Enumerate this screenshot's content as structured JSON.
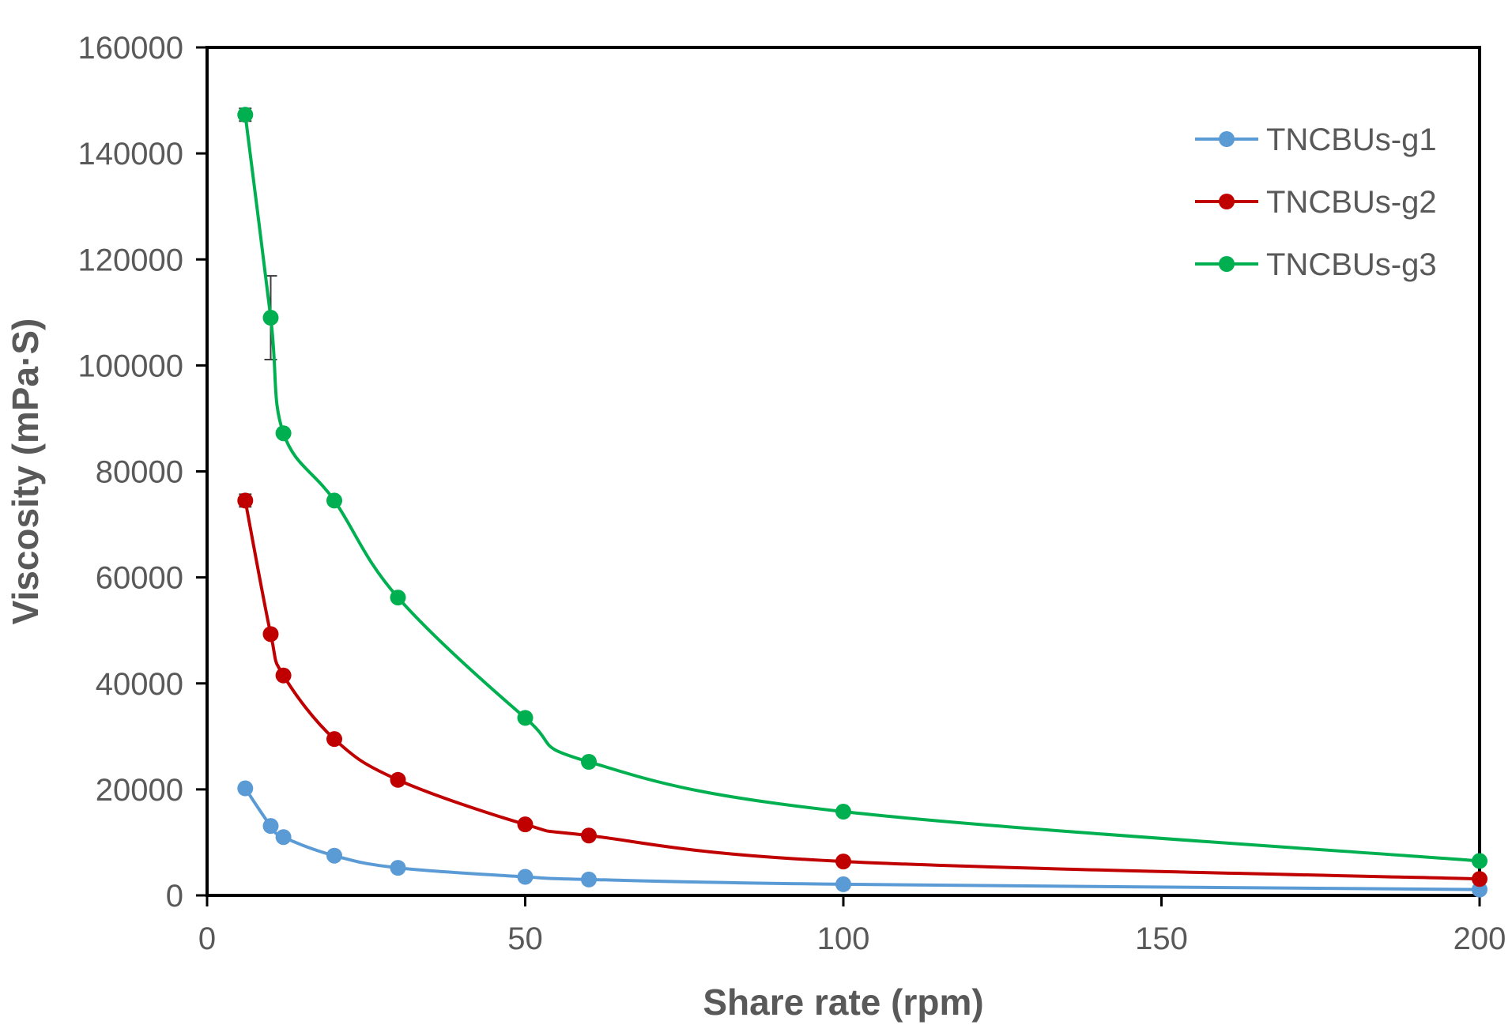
{
  "chart_data": {
    "type": "line",
    "title": "",
    "xlabel": "Share rate (rpm)",
    "ylabel": "Viscosity (mPa·S)",
    "xlim": [
      0,
      200
    ],
    "ylim": [
      0,
      160000
    ],
    "xticks": [
      0,
      50,
      100,
      150,
      200
    ],
    "yticks": [
      0,
      20000,
      40000,
      60000,
      80000,
      100000,
      120000,
      140000,
      160000
    ],
    "grid": false,
    "legend_position": "top-right",
    "x": [
      6,
      10,
      12,
      20,
      30,
      50,
      60,
      100,
      200
    ],
    "series": [
      {
        "name": "TNCBUs-g1",
        "color": "#5B9BD5",
        "values": [
          20200,
          13100,
          11000,
          7500,
          5200,
          3500,
          3000,
          2100,
          1100
        ],
        "errors": [
          0,
          0,
          0,
          0,
          0,
          0,
          0,
          0,
          0
        ]
      },
      {
        "name": "TNCBUs-g2",
        "color": "#C00000",
        "values": [
          74500,
          49300,
          41500,
          29500,
          21800,
          13400,
          11300,
          6400,
          3100
        ],
        "errors": [
          1200,
          0,
          0,
          0,
          0,
          0,
          0,
          0,
          0
        ]
      },
      {
        "name": "TNCBUs-g3",
        "color": "#00B050",
        "values": [
          147300,
          109000,
          87200,
          74500,
          56200,
          33500,
          25200,
          15800,
          6500
        ],
        "errors": [
          1200,
          7900,
          0,
          0,
          0,
          0,
          0,
          0,
          0
        ]
      }
    ]
  }
}
